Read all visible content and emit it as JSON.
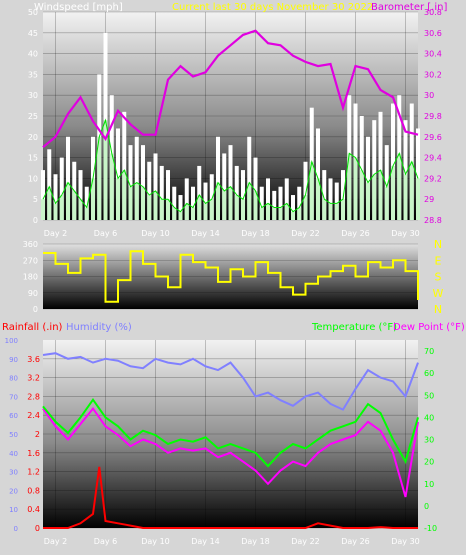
{
  "header": {
    "wind_title": "Windspeed [mph]",
    "period_title": "Current last 30 days November 30 2022",
    "baro_title": "Barometer [.in]"
  },
  "colors": {
    "gust": "#ffffff",
    "wind_avg": "#c8f5c8",
    "wind_line": "#00e000",
    "barometer": "#e000e0",
    "direction": "#ffff00",
    "rain": "#ff0000",
    "humidity": "#8080ff",
    "temperature": "#00ff00",
    "dewpoint": "#ff00ff",
    "grid": "#000000"
  },
  "chart_data": [
    {
      "type": "area",
      "title": "Windspeed [mph]",
      "ylabel": "Windspeed [mph]",
      "y2label": "Barometer [.in]",
      "ylim": [
        0,
        50
      ],
      "y2lim": [
        28.8,
        30.8
      ],
      "y_ticks": [
        "0",
        "5",
        "10",
        "15",
        "20",
        "25",
        "30",
        "35",
        "40",
        "45",
        "50"
      ],
      "y2_ticks": [
        "28.8",
        "29",
        "29.2",
        "29.4",
        "29.6",
        "29.8",
        "30",
        "30.2",
        "30.4",
        "30.6",
        "30.8"
      ],
      "x_ticks": [
        "Day 2",
        "Day 6",
        "Day 10",
        "Day 14",
        "Day 18",
        "Day 22",
        "Day 26",
        "Day 30"
      ],
      "series": [
        {
          "name": "Windspeed [mph]",
          "kind": "gust",
          "x": [
            0.0,
            0.5,
            1.0,
            1.5,
            2.0,
            2.5,
            3.0,
            3.5,
            4.0,
            4.5,
            5.0,
            5.5,
            6.0,
            6.5,
            7.0,
            7.5,
            8.0,
            8.5,
            9.0,
            9.5,
            10.0,
            10.5,
            11.0,
            11.5,
            12.0,
            12.5,
            13.0,
            13.5,
            14.0,
            14.5,
            15.0,
            15.5,
            16.0,
            16.5,
            17.0,
            17.5,
            18.0,
            18.5,
            19.0,
            19.5,
            20.0,
            20.5,
            21.0,
            21.5,
            22.0,
            22.5,
            23.0,
            23.5,
            24.0,
            24.5,
            25.0,
            25.5,
            26.0,
            26.5,
            27.0,
            27.5,
            28.0,
            28.5,
            29.0,
            29.5,
            30.0
          ],
          "values": [
            12,
            17,
            11,
            15,
            20,
            14,
            12,
            8,
            20,
            35,
            45,
            30,
            22,
            26,
            18,
            20,
            18,
            14,
            16,
            13,
            12,
            8,
            6,
            10,
            8,
            13,
            9,
            11,
            20,
            16,
            18,
            13,
            12,
            20,
            15,
            8,
            10,
            7,
            8,
            10,
            6,
            8,
            14,
            27,
            22,
            12,
            10,
            9,
            12,
            30,
            28,
            25,
            20,
            24,
            26,
            18,
            28,
            30,
            24,
            28,
            22
          ]
        },
        {
          "name": "Windspeed [mph]",
          "kind": "average",
          "x": [
            0.0,
            0.5,
            1.0,
            1.5,
            2.0,
            2.5,
            3.0,
            3.5,
            4.0,
            4.5,
            5.0,
            5.5,
            6.0,
            6.5,
            7.0,
            7.5,
            8.0,
            8.5,
            9.0,
            9.5,
            10.0,
            10.5,
            11.0,
            11.5,
            12.0,
            12.5,
            13.0,
            13.5,
            14.0,
            14.5,
            15.0,
            15.5,
            16.0,
            16.5,
            17.0,
            17.5,
            18.0,
            18.5,
            19.0,
            19.5,
            20.0,
            20.5,
            21.0,
            21.5,
            22.0,
            22.5,
            23.0,
            23.5,
            24.0,
            24.5,
            25.0,
            25.5,
            26.0,
            26.5,
            27.0,
            27.5,
            28.0,
            28.5,
            29.0,
            29.5,
            30.0
          ],
          "values": [
            5,
            8,
            4,
            6,
            9,
            7,
            5,
            3,
            10,
            20,
            24,
            16,
            10,
            12,
            8,
            9,
            8,
            6,
            7,
            5,
            5,
            3,
            2,
            4,
            3,
            6,
            4,
            5,
            9,
            7,
            8,
            6,
            5,
            9,
            7,
            3,
            4,
            3,
            3,
            4,
            2,
            3,
            6,
            14,
            10,
            5,
            4,
            4,
            5,
            16,
            15,
            12,
            9,
            11,
            12,
            8,
            13,
            16,
            11,
            14,
            10
          ]
        },
        {
          "name": "Barometer [.in]",
          "kind": "barometer",
          "x": [
            0,
            1,
            2,
            3,
            4,
            5,
            6,
            7,
            8,
            9,
            10,
            11,
            12,
            13,
            14,
            15,
            16,
            17,
            18,
            19,
            20,
            21,
            22,
            23,
            24,
            25,
            26,
            27,
            28,
            29,
            30
          ],
          "values": [
            29.5,
            29.6,
            29.82,
            29.98,
            29.75,
            29.58,
            29.85,
            29.72,
            29.62,
            29.62,
            30.15,
            30.28,
            30.18,
            30.22,
            30.38,
            30.48,
            30.58,
            30.62,
            30.5,
            30.48,
            30.38,
            30.32,
            30.28,
            30.3,
            29.88,
            30.28,
            30.25,
            30.05,
            29.98,
            29.65,
            29.62
          ]
        }
      ]
    },
    {
      "type": "line",
      "title": "",
      "ylim": [
        0,
        360
      ],
      "y_ticks": [
        "0",
        "90",
        "180",
        "270",
        "360"
      ],
      "y2_ticks": [
        "N",
        "W",
        "S",
        "E",
        "N"
      ],
      "series": [
        {
          "name": "Wind direction",
          "x": [
            0,
            1,
            2,
            3,
            4,
            5,
            6,
            7,
            8,
            9,
            10,
            11,
            12,
            13,
            14,
            15,
            16,
            17,
            18,
            19,
            20,
            21,
            22,
            23,
            24,
            25,
            26,
            27,
            28,
            29,
            30
          ],
          "values": [
            310,
            250,
            200,
            280,
            300,
            40,
            160,
            320,
            250,
            180,
            120,
            300,
            260,
            230,
            150,
            220,
            180,
            260,
            200,
            120,
            80,
            140,
            180,
            210,
            240,
            180,
            260,
            230,
            270,
            210,
            50
          ]
        }
      ]
    },
    {
      "type": "line",
      "title": "",
      "ylabel": "Rainfall (.in)",
      "ylabel2": "Humidity (%)",
      "y2label": "Temperature (°F)",
      "y2label2": "Dew Point (°F)",
      "y_ticks": [
        "0",
        "0.4",
        "0.8",
        "1.2",
        "1.6",
        "2",
        "2.4",
        "2.8",
        "3.2",
        "3.6"
      ],
      "humidity_ticks": [
        "0",
        "10",
        "20",
        "30",
        "40",
        "50",
        "60",
        "70",
        "80",
        "90",
        "100"
      ],
      "temp_ticks": [
        "-10",
        "0",
        "10",
        "20",
        "30",
        "40",
        "50",
        "60",
        "70"
      ],
      "x_ticks": [
        "Day 2",
        "Day 6",
        "Day 10",
        "Day 14",
        "Day 18",
        "Day 22",
        "Day 26",
        "Day 30"
      ],
      "rain_lim": [
        0,
        4
      ],
      "temp_lim": [
        -10,
        75
      ],
      "series": [
        {
          "name": "Rainfall (.in)",
          "x": [
            0,
            1,
            2,
            3,
            4,
            4.5,
            5,
            6,
            7,
            8,
            9,
            10,
            11,
            12,
            13,
            14,
            15,
            16,
            17,
            18,
            19,
            20,
            21,
            22,
            23,
            24,
            25,
            26,
            27,
            28,
            29,
            30
          ],
          "values": [
            0,
            0,
            0,
            0.1,
            0.3,
            1.3,
            0.15,
            0.1,
            0.05,
            0,
            0,
            0,
            0,
            0,
            0,
            0,
            0,
            0,
            0,
            0,
            0,
            0,
            0,
            0.1,
            0.05,
            0,
            0,
            0,
            0.02,
            0,
            0,
            0
          ]
        },
        {
          "name": "Humidity (%)",
          "x": [
            0,
            1,
            2,
            3,
            4,
            5,
            6,
            7,
            8,
            9,
            10,
            11,
            12,
            13,
            14,
            15,
            16,
            17,
            18,
            19,
            20,
            21,
            22,
            23,
            24,
            25,
            26,
            27,
            28,
            29,
            30
          ],
          "values": [
            92,
            93,
            90,
            91,
            88,
            90,
            89,
            86,
            85,
            90,
            88,
            87,
            90,
            86,
            84,
            88,
            80,
            70,
            72,
            68,
            65,
            70,
            72,
            66,
            63,
            74,
            84,
            80,
            78,
            70,
            88
          ]
        },
        {
          "name": "Temperature (°F)",
          "x": [
            0,
            1,
            2,
            3,
            4,
            5,
            6,
            7,
            8,
            9,
            10,
            11,
            12,
            13,
            14,
            15,
            16,
            17,
            18,
            19,
            20,
            21,
            22,
            23,
            24,
            25,
            26,
            27,
            28,
            29,
            30
          ],
          "values": [
            45,
            38,
            33,
            40,
            48,
            40,
            36,
            30,
            34,
            32,
            28,
            30,
            29,
            31,
            26,
            28,
            26,
            24,
            18,
            24,
            28,
            26,
            30,
            34,
            36,
            38,
            46,
            42,
            30,
            20,
            40
          ]
        },
        {
          "name": "Dew Point (°F)",
          "x": [
            0,
            1,
            2,
            3,
            4,
            5,
            6,
            7,
            8,
            9,
            10,
            11,
            12,
            13,
            14,
            15,
            16,
            17,
            18,
            19,
            20,
            21,
            22,
            23,
            24,
            25,
            26,
            27,
            28,
            29,
            30
          ],
          "values": [
            44,
            36,
            30,
            37,
            44,
            36,
            32,
            27,
            30,
            28,
            24,
            26,
            25,
            26,
            22,
            24,
            20,
            16,
            10,
            16,
            20,
            18,
            24,
            28,
            30,
            32,
            38,
            34,
            24,
            4,
            38
          ]
        }
      ]
    }
  ]
}
